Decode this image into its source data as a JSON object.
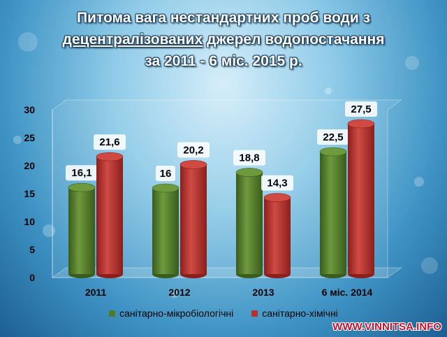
{
  "title": {
    "line1": "Питома вага нестандартних проб води з",
    "line2_underlined": "децентралізованих",
    "line2_rest": " джерел водопостачання",
    "line3": "за 2011 - 6 міс. 2015 р."
  },
  "chart_data": {
    "type": "bar",
    "title": "Питома вага нестандартних проб води з децентралізованих джерел водопостачання за 2011 - 6 міс. 2015 р.",
    "categories": [
      "2011",
      "2012",
      "2013",
      "6 міс. 2014"
    ],
    "series": [
      {
        "name": "санітарно-мікробіологічні",
        "values": [
          16.1,
          16,
          18.8,
          22.5
        ],
        "labels": [
          "16,1",
          "16",
          "18,8",
          "22,5"
        ],
        "color": "#4f7a28"
      },
      {
        "name": "санітарно-хімічні",
        "values": [
          21.6,
          20.2,
          14.3,
          27.5
        ],
        "labels": [
          "21,6",
          "20,2",
          "14,3",
          "27,5"
        ],
        "color": "#b8302c"
      }
    ],
    "yticks": [
      "0",
      "5",
      "10",
      "15",
      "20",
      "25",
      "30"
    ],
    "ylim": [
      0,
      30
    ],
    "grid": false,
    "legend_position": "bottom",
    "bar_shape": "3d-cylinder"
  },
  "watermark": "WWW.VINNITSA.INFO"
}
